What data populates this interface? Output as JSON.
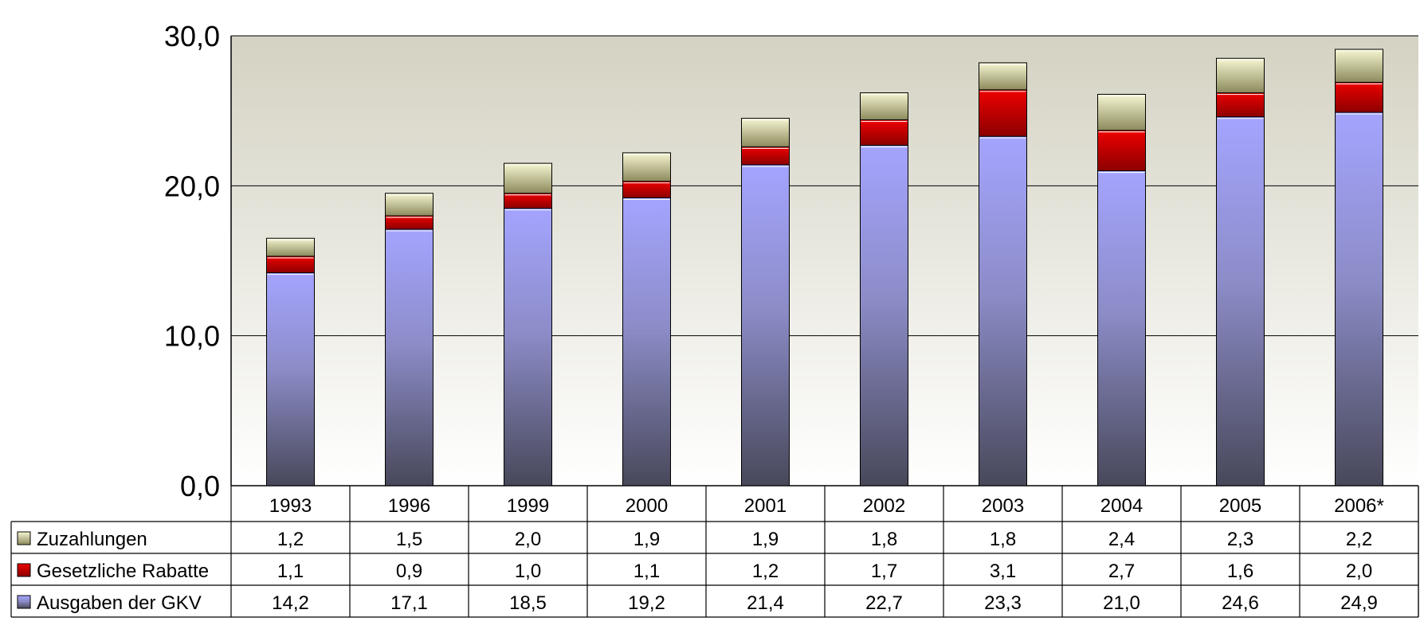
{
  "chart_data": {
    "type": "bar",
    "stacked": true,
    "title": "",
    "xlabel": "",
    "ylabel": "",
    "ylim": [
      0,
      30
    ],
    "yticks": [
      "0,0",
      "10,0",
      "20,0",
      "30,0"
    ],
    "grid": true,
    "legend": "data-table-left",
    "categories": [
      "1993",
      "1996",
      "1999",
      "2000",
      "2001",
      "2002",
      "2003",
      "2004",
      "2005",
      "2006*"
    ],
    "series": [
      {
        "name": "Ausgaben der GKV",
        "color": "#a0a0f8",
        "values": [
          14.2,
          17.1,
          18.5,
          19.2,
          21.4,
          22.7,
          23.3,
          21.0,
          24.6,
          24.9
        ],
        "labels": [
          "14,2",
          "17,1",
          "18,5",
          "19,2",
          "21,4",
          "22,7",
          "23,3",
          "21,0",
          "24,6",
          "24,9"
        ]
      },
      {
        "name": "Gesetzliche Rabatte",
        "color": "#ee0000",
        "values": [
          1.1,
          0.9,
          1.0,
          1.1,
          1.2,
          1.7,
          3.1,
          2.7,
          1.6,
          2.0
        ],
        "labels": [
          "1,1",
          "0,9",
          "1,0",
          "1,1",
          "1,2",
          "1,7",
          "3,1",
          "2,7",
          "1,6",
          "2,0"
        ]
      },
      {
        "name": "Zuzahlungen",
        "color": "#f0f0c0",
        "values": [
          1.2,
          1.5,
          2.0,
          1.9,
          1.9,
          1.8,
          1.8,
          2.4,
          2.3,
          2.2
        ],
        "labels": [
          "1,2",
          "1,5",
          "2,0",
          "1,9",
          "1,9",
          "1,8",
          "1,8",
          "2,4",
          "2,3",
          "2,2"
        ]
      }
    ],
    "table_row_order": [
      "Zuzahlungen",
      "Gesetzliche Rabatte",
      "Ausgaben der GKV"
    ]
  }
}
